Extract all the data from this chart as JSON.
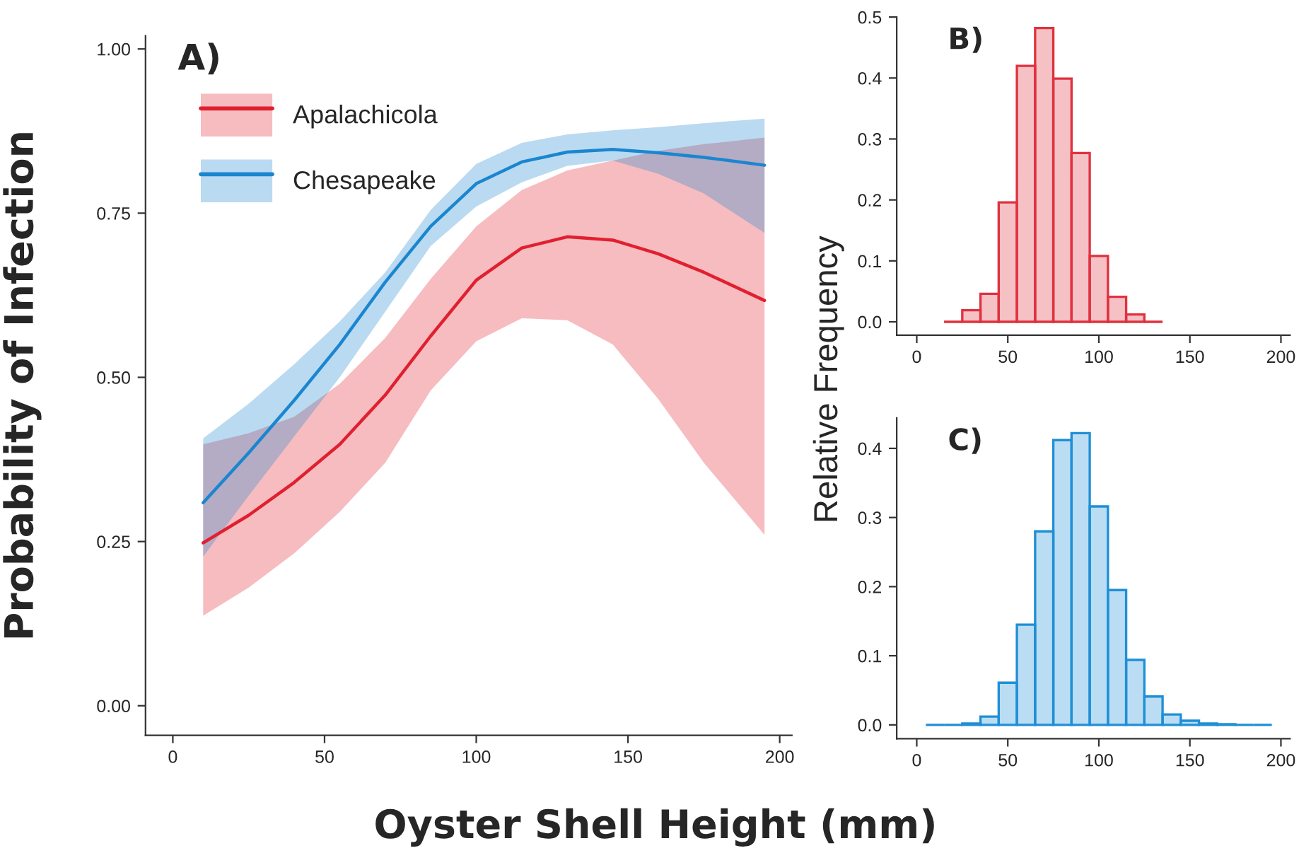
{
  "chart_data": [
    {
      "type": "line",
      "title": "A)",
      "xlabel": "Oyster Shell Height (mm)",
      "ylabel": "Probability of Infection",
      "xlim": [
        -9,
        204
      ],
      "ylim": [
        -0.045,
        1.02
      ],
      "xticks": [
        0,
        50,
        100,
        150,
        200
      ],
      "yticks": [
        {
          "value": 0,
          "label": "0.00"
        },
        {
          "value": 0.25,
          "label": "0.25"
        },
        {
          "value": 0.5,
          "label": "0.50"
        },
        {
          "value": 0.75,
          "label": "0.75"
        },
        {
          "value": 1,
          "label": "1.00"
        }
      ],
      "grid": false,
      "legend": "top left",
      "marker": "none",
      "line_style": "solid",
      "series": [
        {
          "name": "Apalachicola",
          "color": "#e0202f",
          "x": [
            10,
            25,
            40,
            55,
            70,
            85,
            100,
            115,
            130,
            145,
            160,
            175,
            195
          ],
          "values": [
            0.248,
            0.29,
            0.34,
            0.398,
            0.473,
            0.563,
            0.648,
            0.697,
            0.714,
            0.709,
            0.688,
            0.66,
            0.617
          ],
          "lower": [
            0.137,
            0.18,
            0.232,
            0.295,
            0.37,
            0.48,
            0.555,
            0.59,
            0.587,
            0.55,
            0.467,
            0.37,
            0.26
          ],
          "upper": [
            0.398,
            0.415,
            0.44,
            0.49,
            0.56,
            0.65,
            0.73,
            0.785,
            0.815,
            0.83,
            0.845,
            0.855,
            0.865
          ]
        },
        {
          "name": "Chesapeake",
          "color": "#1a86cf",
          "x": [
            10,
            25,
            40,
            55,
            70,
            85,
            100,
            115,
            130,
            145,
            160,
            175,
            195
          ],
          "values": [
            0.309,
            0.385,
            0.465,
            0.55,
            0.645,
            0.73,
            0.795,
            0.828,
            0.843,
            0.847,
            0.842,
            0.835,
            0.823
          ],
          "lower": [
            0.227,
            0.32,
            0.41,
            0.5,
            0.6,
            0.7,
            0.76,
            0.797,
            0.822,
            0.83,
            0.81,
            0.78,
            0.72
          ],
          "upper": [
            0.407,
            0.46,
            0.52,
            0.585,
            0.66,
            0.755,
            0.825,
            0.857,
            0.87,
            0.876,
            0.881,
            0.887,
            0.894
          ]
        }
      ]
    },
    {
      "type": "histogram",
      "title": "B)",
      "ylabel": "Relative Frequency",
      "color": "#e0313f",
      "bins": [
        15,
        25,
        35,
        45,
        55,
        65,
        75,
        85,
        95,
        105,
        115,
        125,
        135
      ],
      "values": [
        0,
        0.019,
        0.046,
        0.196,
        0.42,
        0.482,
        0.399,
        0.277,
        0.108,
        0.041,
        0.012,
        0
      ],
      "xlim": [
        -11,
        205
      ],
      "ylim": [
        -0.022,
        0.5
      ],
      "xticks": [
        0,
        50,
        100,
        150,
        200
      ],
      "yticks": [
        {
          "value": 0,
          "label": "0.0"
        },
        {
          "value": 0.1,
          "label": "0.1"
        },
        {
          "value": 0.2,
          "label": "0.2"
        },
        {
          "value": 0.3,
          "label": "0.3"
        },
        {
          "value": 0.4,
          "label": "0.4"
        },
        {
          "value": 0.5,
          "label": "0.5"
        }
      ],
      "grid": false
    },
    {
      "type": "histogram",
      "title": "C)",
      "color": "#1f8fd6",
      "bins": [
        5,
        15,
        25,
        35,
        45,
        55,
        65,
        75,
        85,
        95,
        105,
        115,
        125,
        135,
        145,
        155,
        165,
        175,
        185,
        195
      ],
      "values": [
        0,
        0,
        0.002,
        0.012,
        0.061,
        0.145,
        0.28,
        0.412,
        0.422,
        0.316,
        0.195,
        0.094,
        0.041,
        0.015,
        0.006,
        0.002,
        0.001,
        0,
        0
      ],
      "xlim": [
        -11,
        205
      ],
      "ylim": [
        -0.02,
        0.444
      ],
      "xticks": [
        0,
        50,
        100,
        150,
        200
      ],
      "yticks": [
        {
          "value": 0,
          "label": "0.0"
        },
        {
          "value": 0.1,
          "label": "0.1"
        },
        {
          "value": 0.2,
          "label": "0.2"
        },
        {
          "value": 0.3,
          "label": "0.3"
        },
        {
          "value": 0.4,
          "label": "0.4"
        }
      ],
      "grid": false
    }
  ]
}
